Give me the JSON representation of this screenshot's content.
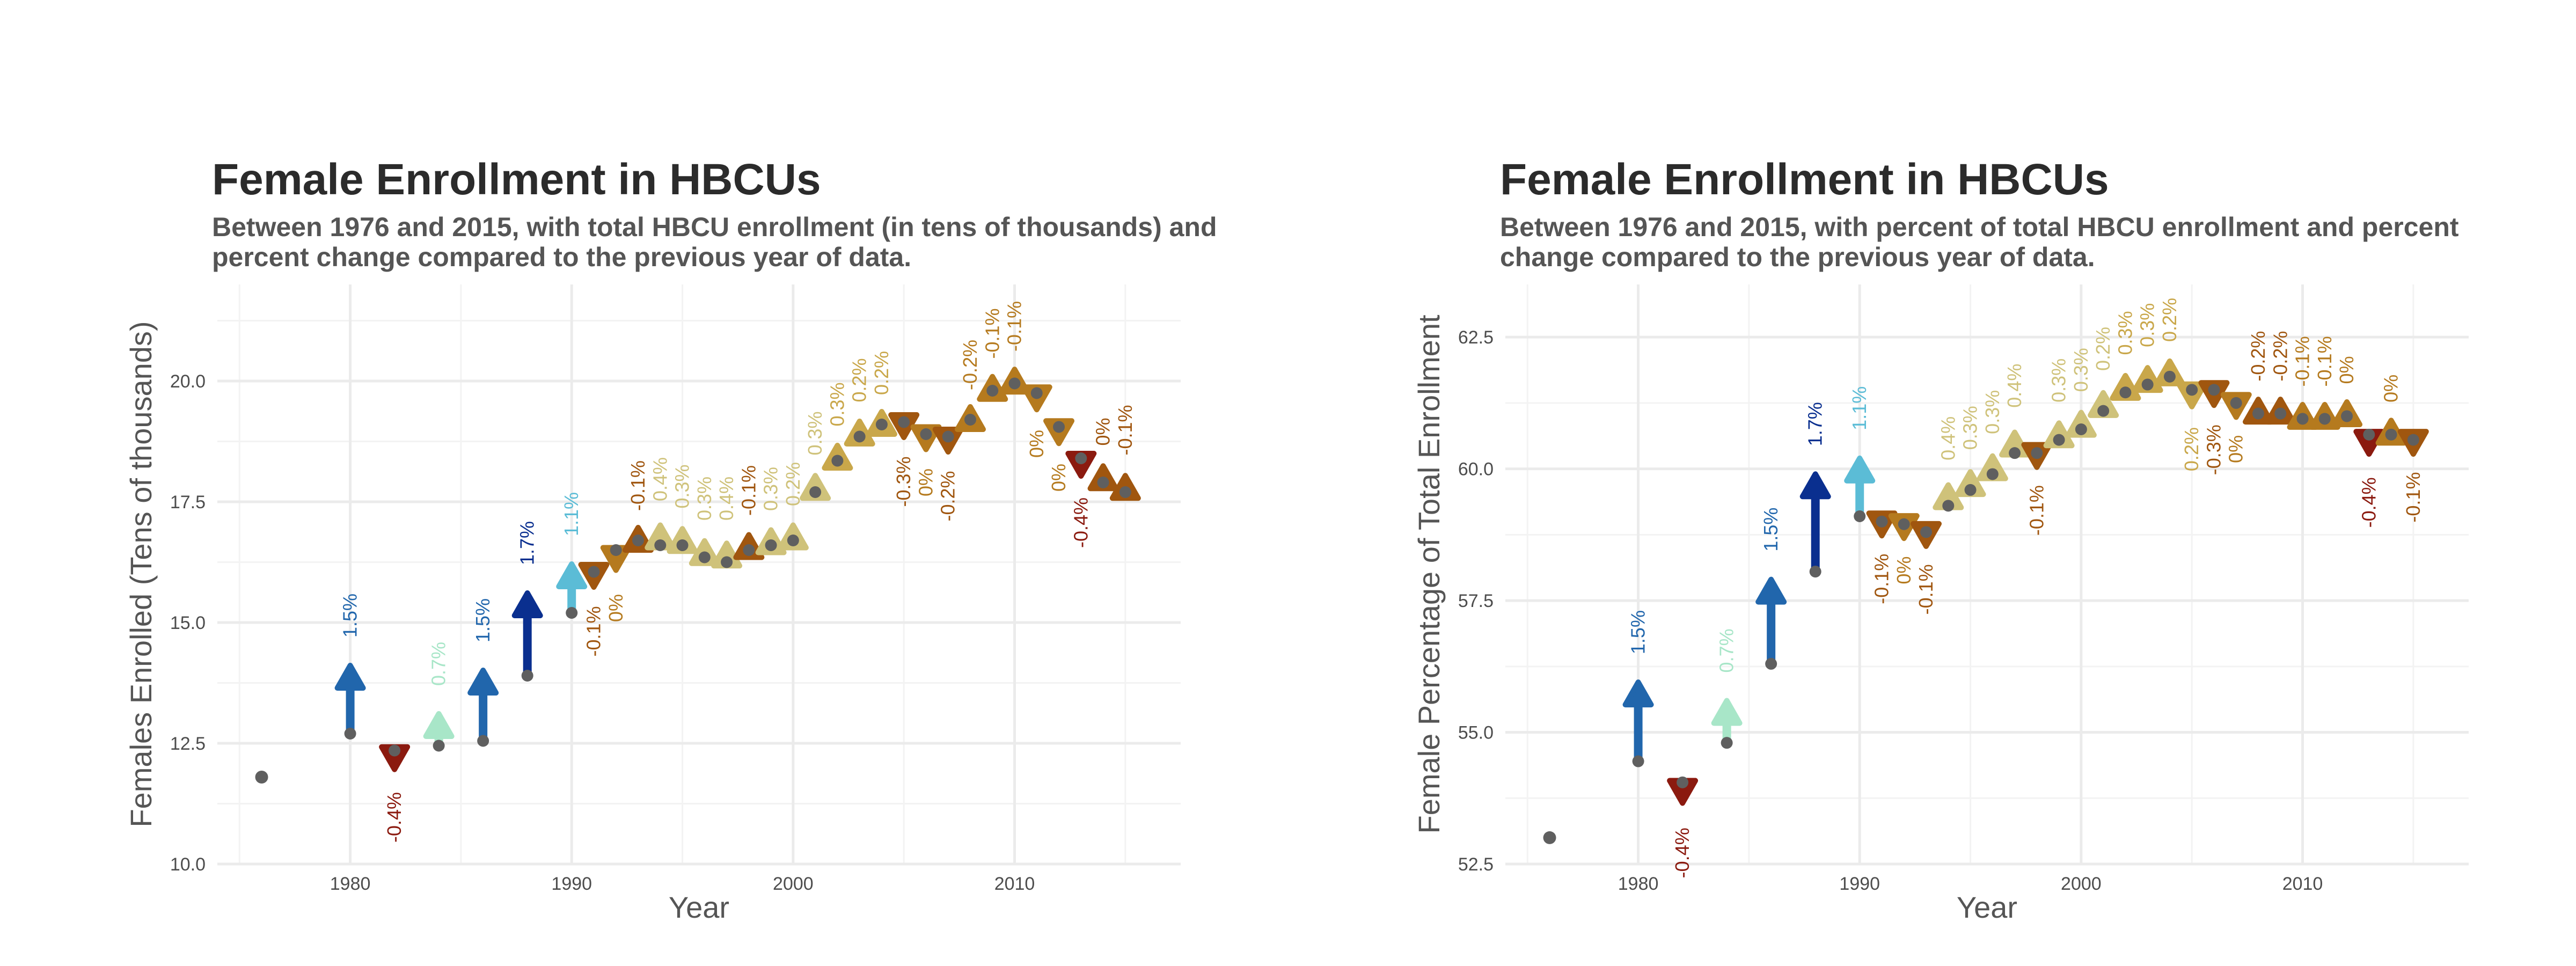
{
  "palette": {
    "neg_large": "#8b1a0f",
    "neg_medium": "#a0560f",
    "neg_small": "#b57a1e",
    "pos_small": "#cfc27a",
    "pos_medium": "#c9a74a",
    "pos_light": "#a8e6c8",
    "pos_cyan": "#5bbcd6",
    "pos_blue": "#2166ac",
    "pos_navy": "#0a2f8f",
    "start_point": "#5f5f5f",
    "grid": "#ebebeb",
    "axis_text": "#4d4d4d"
  },
  "chart_data": [
    {
      "type": "scatter",
      "title": "Female Enrollment in HBCUs",
      "subtitle": "Between 1976 and 2015, with total HBCU enrollment (in tens of thousands) and percent change compared to the previous year of data.",
      "xlabel": "Year",
      "ylabel": "Females Enrolled (Tens of thousands)",
      "xlim": [
        1974,
        2017.5
      ],
      "ylim": [
        10,
        22
      ],
      "x_ticks": [
        1980,
        1990,
        2000,
        2010
      ],
      "y_ticks": [
        10,
        12.5,
        15,
        17.5,
        20
      ],
      "y_tick_labels": [
        "10.0",
        "12.5",
        "15.0",
        "17.5",
        "20.0"
      ],
      "grid": true,
      "series": [
        {
          "x": 1976,
          "start": 11.8,
          "end": null,
          "label": null,
          "color": null
        },
        {
          "x": 1980,
          "start": 12.7,
          "end": 14.0,
          "label": "1.5%",
          "color": "#2166ac"
        },
        {
          "x": 1982,
          "start": 12.35,
          "end": 12.1,
          "label": "-0.4%",
          "color": "#8b1a0f"
        },
        {
          "x": 1984,
          "start": 12.45,
          "end": 13.0,
          "label": "0.7%",
          "color": "#a8e6c8"
        },
        {
          "x": 1986,
          "start": 12.55,
          "end": 13.9,
          "label": "1.5%",
          "color": "#2166ac"
        },
        {
          "x": 1988,
          "start": 13.9,
          "end": 15.5,
          "label": "1.7%",
          "color": "#0a2f8f"
        },
        {
          "x": 1990,
          "start": 15.2,
          "end": 16.1,
          "label": "1.1%",
          "color": "#5bbcd6"
        },
        {
          "x": 1991,
          "start": 16.05,
          "end": 15.95,
          "label": "-0.1%",
          "color": "#a0560f"
        },
        {
          "x": 1992,
          "start": 16.5,
          "end": 16.2,
          "label": "0%",
          "color": "#b57a1e"
        },
        {
          "x": 1993,
          "start": 16.7,
          "end": 16.7,
          "label": "-0.1%",
          "color": "#a0560f"
        },
        {
          "x": 1994,
          "start": 16.6,
          "end": 16.9,
          "label": "0.4%",
          "color": "#cfc27a"
        },
        {
          "x": 1995,
          "start": 16.6,
          "end": 16.75,
          "label": "0.3%",
          "color": "#cfc27a"
        },
        {
          "x": 1996,
          "start": 16.35,
          "end": 16.5,
          "label": "0.3%",
          "color": "#cfc27a"
        },
        {
          "x": 1997,
          "start": 16.25,
          "end": 16.5,
          "label": "0.4%",
          "color": "#cfc27a"
        },
        {
          "x": 1998,
          "start": 16.5,
          "end": 16.6,
          "label": "-0.1%",
          "color": "#a0560f"
        },
        {
          "x": 1999,
          "start": 16.6,
          "end": 16.7,
          "label": "0.3%",
          "color": "#cfc27a"
        },
        {
          "x": 2000,
          "start": 16.7,
          "end": 16.8,
          "label": "0.2%",
          "color": "#cfc27a"
        },
        {
          "x": 2001,
          "start": 17.7,
          "end": 17.85,
          "label": "0.3%",
          "color": "#cfc27a"
        },
        {
          "x": 2002,
          "start": 18.35,
          "end": 18.45,
          "label": "0.3%",
          "color": "#c9a74a"
        },
        {
          "x": 2003,
          "start": 18.85,
          "end": 18.95,
          "label": "0.2%",
          "color": "#c9a74a"
        },
        {
          "x": 2004,
          "start": 19.1,
          "end": 19.1,
          "label": "0.2%",
          "color": "#c9a74a"
        },
        {
          "x": 2005,
          "start": 19.15,
          "end": 19.05,
          "label": "-0.3%",
          "color": "#a0560f"
        },
        {
          "x": 2006,
          "start": 18.9,
          "end": 18.8,
          "label": "0%",
          "color": "#b57a1e"
        },
        {
          "x": 2007,
          "start": 18.85,
          "end": 18.75,
          "label": "-0.2%",
          "color": "#a0560f"
        },
        {
          "x": 2008,
          "start": 19.2,
          "end": 19.2,
          "label": "-0.2%",
          "color": "#b57a1e"
        },
        {
          "x": 2009,
          "start": 19.8,
          "end": 19.85,
          "label": "-0.1%",
          "color": "#b57a1e"
        },
        {
          "x": 2010,
          "start": 19.95,
          "end": 20.0,
          "label": "-0.1%",
          "color": "#b57a1e"
        },
        {
          "x": 2011,
          "start": 19.75,
          "end": 19.6,
          "label": "0%",
          "color": "#b57a1e"
        },
        {
          "x": 2012,
          "start": 19.05,
          "end": 18.9,
          "label": "0%",
          "color": "#b57a1e"
        },
        {
          "x": 2013,
          "start": 18.4,
          "end": 18.2,
          "label": "-0.4%",
          "color": "#8b1a0f"
        },
        {
          "x": 2014,
          "start": 17.9,
          "end": 18.05,
          "label": "0%",
          "color": "#a0560f"
        },
        {
          "x": 2015,
          "start": 17.7,
          "end": 17.85,
          "label": "-0.1%",
          "color": "#a0560f"
        }
      ]
    },
    {
      "type": "scatter",
      "title": "Female Enrollment in HBCUs",
      "subtitle": "Between 1976 and 2015, with percent of total HBCU enrollment and percent change compared to the previous year of data.",
      "xlabel": "Year",
      "ylabel": "Female Percentage of Total Enrollment",
      "xlim": [
        1974,
        2017.5
      ],
      "ylim": [
        52.5,
        63.5
      ],
      "x_ticks": [
        1980,
        1990,
        2000,
        2010
      ],
      "y_ticks": [
        52.5,
        55,
        57.5,
        60,
        62.5
      ],
      "y_tick_labels": [
        "52.5",
        "55.0",
        "57.5",
        "60.0",
        "62.5"
      ],
      "grid": true,
      "series": [
        {
          "x": 1976,
          "start": 53.0,
          "end": null,
          "label": null,
          "color": null
        },
        {
          "x": 1980,
          "start": 54.45,
          "end": 55.85,
          "label": "1.5%",
          "color": "#2166ac"
        },
        {
          "x": 1982,
          "start": 54.05,
          "end": 53.75,
          "label": "-0.4%",
          "color": "#8b1a0f"
        },
        {
          "x": 1984,
          "start": 54.8,
          "end": 55.5,
          "label": "0.7%",
          "color": "#a8e6c8"
        },
        {
          "x": 1986,
          "start": 56.3,
          "end": 57.8,
          "label": "1.5%",
          "color": "#2166ac"
        },
        {
          "x": 1988,
          "start": 58.05,
          "end": 59.8,
          "label": "1.7%",
          "color": "#0a2f8f"
        },
        {
          "x": 1990,
          "start": 59.1,
          "end": 60.1,
          "label": "1.1%",
          "color": "#5bbcd6"
        },
        {
          "x": 1991,
          "start": 59.0,
          "end": 58.95,
          "label": "-0.1%",
          "color": "#a0560f"
        },
        {
          "x": 1992,
          "start": 58.95,
          "end": 58.9,
          "label": "0%",
          "color": "#b57a1e"
        },
        {
          "x": 1993,
          "start": 58.8,
          "end": 58.75,
          "label": "-0.1%",
          "color": "#a0560f"
        },
        {
          "x": 1994,
          "start": 59.3,
          "end": 59.6,
          "label": "0.4%",
          "color": "#cfc27a"
        },
        {
          "x": 1995,
          "start": 59.6,
          "end": 59.8,
          "label": "0.3%",
          "color": "#cfc27a"
        },
        {
          "x": 1996,
          "start": 59.9,
          "end": 60.1,
          "label": "0.3%",
          "color": "#cfc27a"
        },
        {
          "x": 1997,
          "start": 60.3,
          "end": 60.6,
          "label": "0.4%",
          "color": "#cfc27a"
        },
        {
          "x": 1998,
          "start": 60.3,
          "end": 60.25,
          "label": "-0.1%",
          "color": "#a0560f"
        },
        {
          "x": 1999,
          "start": 60.55,
          "end": 60.7,
          "label": "0.3%",
          "color": "#cfc27a"
        },
        {
          "x": 2000,
          "start": 60.75,
          "end": 60.9,
          "label": "0.3%",
          "color": "#cfc27a"
        },
        {
          "x": 2001,
          "start": 61.1,
          "end": 61.3,
          "label": "0.2%",
          "color": "#cfc27a"
        },
        {
          "x": 2002,
          "start": 61.45,
          "end": 61.6,
          "label": "0.3%",
          "color": "#c9a74a"
        },
        {
          "x": 2003,
          "start": 61.6,
          "end": 61.75,
          "label": "0.3%",
          "color": "#c9a74a"
        },
        {
          "x": 2004,
          "start": 61.75,
          "end": 61.85,
          "label": "0.2%",
          "color": "#c9a74a"
        },
        {
          "x": 2005,
          "start": 61.5,
          "end": 61.35,
          "label": "0.2%",
          "color": "#c9a74a"
        },
        {
          "x": 2006,
          "start": 61.5,
          "end": 61.4,
          "label": "-0.3%",
          "color": "#a0560f"
        },
        {
          "x": 2007,
          "start": 61.25,
          "end": 61.2,
          "label": "0%",
          "color": "#b57a1e"
        },
        {
          "x": 2008,
          "start": 61.05,
          "end": 61.1,
          "label": "-0.2%",
          "color": "#a0560f"
        },
        {
          "x": 2009,
          "start": 61.05,
          "end": 61.1,
          "label": "-0.2%",
          "color": "#a0560f"
        },
        {
          "x": 2010,
          "start": 60.95,
          "end": 61.0,
          "label": "-0.1%",
          "color": "#b57a1e"
        },
        {
          "x": 2011,
          "start": 60.95,
          "end": 61.0,
          "label": "-0.1%",
          "color": "#b57a1e"
        },
        {
          "x": 2012,
          "start": 61.0,
          "end": 61.05,
          "label": "0%",
          "color": "#b57a1e"
        },
        {
          "x": 2013,
          "start": 60.65,
          "end": 60.4,
          "label": "-0.4%",
          "color": "#8b1a0f"
        },
        {
          "x": 2014,
          "start": 60.65,
          "end": 60.7,
          "label": "0%",
          "color": "#b57a1e"
        },
        {
          "x": 2015,
          "start": 60.55,
          "end": 60.5,
          "label": "-0.1%",
          "color": "#a0560f"
        }
      ]
    }
  ]
}
